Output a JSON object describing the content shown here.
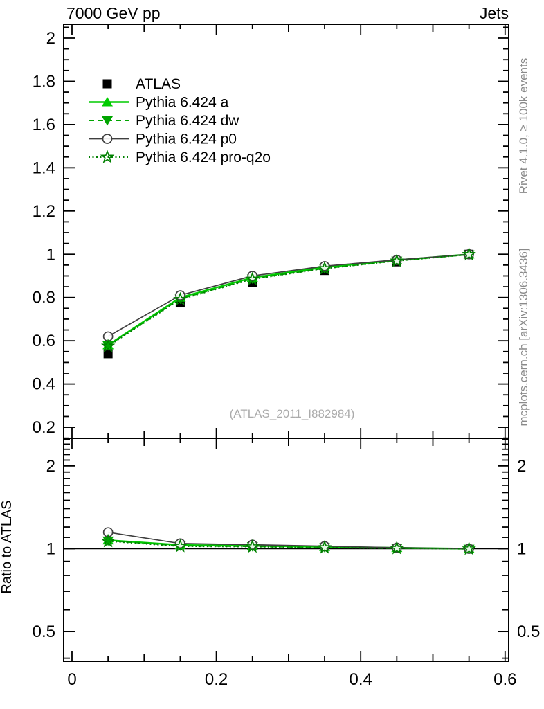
{
  "header": {
    "title_left": "7000 GeV pp",
    "title_right": "Jets"
  },
  "side_notes": {
    "top": "Rivet 4.1.0, ≥ 100k events",
    "bottom": "mcplots.cern.ch [arXiv:1306.3436]"
  },
  "watermark": "(ATLAS_2011_I882984)",
  "colors": {
    "data": "#000000",
    "pythia_a": "#00cc00",
    "pythia_dw": "#00a500",
    "pythia_p0": "#3f3f3f",
    "pythia_proq2o": "#008000",
    "annotation_gray": "#8a8a8a"
  },
  "chart_data": [
    {
      "type": "line",
      "panel": "main",
      "title": "7000 GeV pp — Jets",
      "x": [
        0.05,
        0.15,
        0.25,
        0.35,
        0.45,
        0.55
      ],
      "series": [
        {
          "name": "ATLAS",
          "values": [
            0.54,
            0.775,
            0.87,
            0.925,
            0.965,
            1.0
          ],
          "color": "#000000",
          "marker": "filled-square",
          "line": "none",
          "lw": 0
        },
        {
          "name": "Pythia 6.424 a",
          "values": [
            0.58,
            0.8,
            0.892,
            0.94,
            0.973,
            1.0
          ],
          "color": "#00cc00",
          "marker": "filled-triangle-up",
          "line": "solid",
          "lw": 2.4
        },
        {
          "name": "Pythia 6.424 dw",
          "values": [
            0.578,
            0.794,
            0.887,
            0.935,
            0.97,
            0.999
          ],
          "color": "#00a500",
          "marker": "filled-triangle-down",
          "line": "dashed",
          "lw": 2
        },
        {
          "name": "Pythia 6.424 p0",
          "values": [
            0.62,
            0.81,
            0.9,
            0.945,
            0.974,
            1.0
          ],
          "color": "#3f3f3f",
          "marker": "open-circle",
          "line": "solid",
          "lw": 1.7
        },
        {
          "name": "Pythia 6.424 pro-q2o",
          "values": [
            0.575,
            0.791,
            0.885,
            0.934,
            0.969,
            0.999
          ],
          "color": "#008000",
          "marker": "open-star",
          "line": "dotted",
          "lw": 2
        }
      ],
      "xlim": [
        -0.0115,
        0.605
      ],
      "ylim": [
        0.149,
        2.064
      ],
      "yscale": "linear",
      "yticks": {
        "values": [
          2,
          1.8,
          1.6,
          1.4,
          1.2,
          1,
          0.8,
          0.6,
          0.4,
          0.2
        ],
        "labels": [
          "2",
          "1.8",
          "1.6",
          "1.4",
          "1.2",
          "1",
          "0.8",
          "0.6",
          "0.4",
          "0.2"
        ]
      },
      "xticks": {
        "values": [
          0,
          0.2,
          0.4,
          0.6
        ],
        "labels": [
          "0",
          "0.2",
          "0.4",
          "0.6"
        ]
      },
      "legend_position": "top-left",
      "grid": false
    },
    {
      "type": "line",
      "panel": "ratio",
      "ylabel": "Ratio to ATLAS",
      "x": [
        0.05,
        0.15,
        0.25,
        0.35,
        0.45,
        0.55
      ],
      "series": [
        {
          "name": "Pythia 6.424 a",
          "values": [
            1.074,
            1.032,
            1.025,
            1.016,
            1.008,
            1.0
          ],
          "color": "#00cc00",
          "marker": "filled-triangle-up",
          "line": "solid",
          "lw": 2.4
        },
        {
          "name": "Pythia 6.424 dw",
          "values": [
            1.07,
            1.025,
            1.02,
            1.011,
            1.005,
            0.999
          ],
          "color": "#00a500",
          "marker": "filled-triangle-down",
          "line": "dashed",
          "lw": 2
        },
        {
          "name": "Pythia 6.424 p0",
          "values": [
            1.148,
            1.045,
            1.034,
            1.022,
            1.009,
            1.0
          ],
          "color": "#3f3f3f",
          "marker": "open-circle",
          "line": "solid",
          "lw": 1.7
        },
        {
          "name": "Pythia 6.424 pro-q2o",
          "values": [
            1.065,
            1.021,
            1.017,
            1.01,
            1.004,
            0.999
          ],
          "color": "#008000",
          "marker": "open-star",
          "line": "dotted",
          "lw": 2
        }
      ],
      "xlim": [
        -0.0115,
        0.605
      ],
      "ylim": [
        0.39,
        2.52
      ],
      "yscale": "log",
      "yticks": {
        "values": [
          2,
          1,
          0.5
        ],
        "labels": [
          "2",
          "1",
          "0.5"
        ]
      },
      "reference_line": 1,
      "grid": false
    }
  ]
}
